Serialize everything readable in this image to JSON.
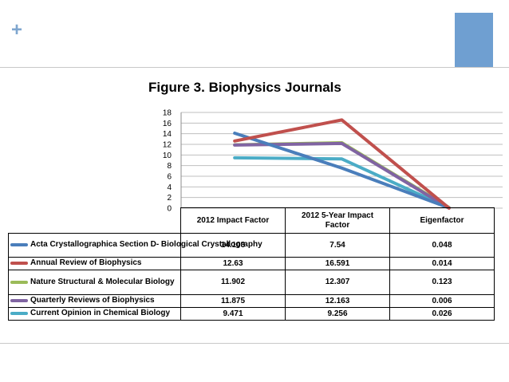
{
  "decor": {
    "plus_glyph": "+",
    "accent_color": "#6f9fd1"
  },
  "chart_data": {
    "type": "line",
    "title": "Figure 3. Biophysics Journals",
    "categories": [
      "2012 Impact Factor",
      "2012 5-Year Impact Factor",
      "Eigenfactor"
    ],
    "ylim": [
      0,
      18
    ],
    "yticks": [
      "0",
      "2",
      "4",
      "6",
      "8",
      "10",
      "12",
      "14",
      "16",
      "18"
    ],
    "grid": true,
    "legend_position": "table-left",
    "series": [
      {
        "name": "Acta Crystallographica Section D- Biological Crystallography",
        "color": "#4a7ebb",
        "values": [
          14.103,
          7.54,
          0.048
        ],
        "labels": [
          "14.103",
          "7.54",
          "0.048"
        ]
      },
      {
        "name": "Annual Review of Biophysics",
        "color": "#c0504d",
        "values": [
          12.63,
          16.591,
          0.014
        ],
        "labels": [
          "12.63",
          "16.591",
          "0.014"
        ]
      },
      {
        "name": "Nature Structural & Molecular Biology",
        "color": "#9bbb59",
        "values": [
          11.902,
          12.307,
          0.123
        ],
        "labels": [
          "11.902",
          "12.307",
          "0.123"
        ]
      },
      {
        "name": "Quarterly Reviews of Biophysics",
        "color": "#8064a2",
        "values": [
          11.875,
          12.163,
          0.006
        ],
        "labels": [
          "11.875",
          "12.163",
          "0.006"
        ]
      },
      {
        "name": "Current Opinion in Chemical Biology",
        "color": "#4bacc6",
        "values": [
          9.471,
          9.256,
          0.026
        ],
        "labels": [
          "9.471",
          "9.256",
          "0.026"
        ]
      }
    ]
  }
}
